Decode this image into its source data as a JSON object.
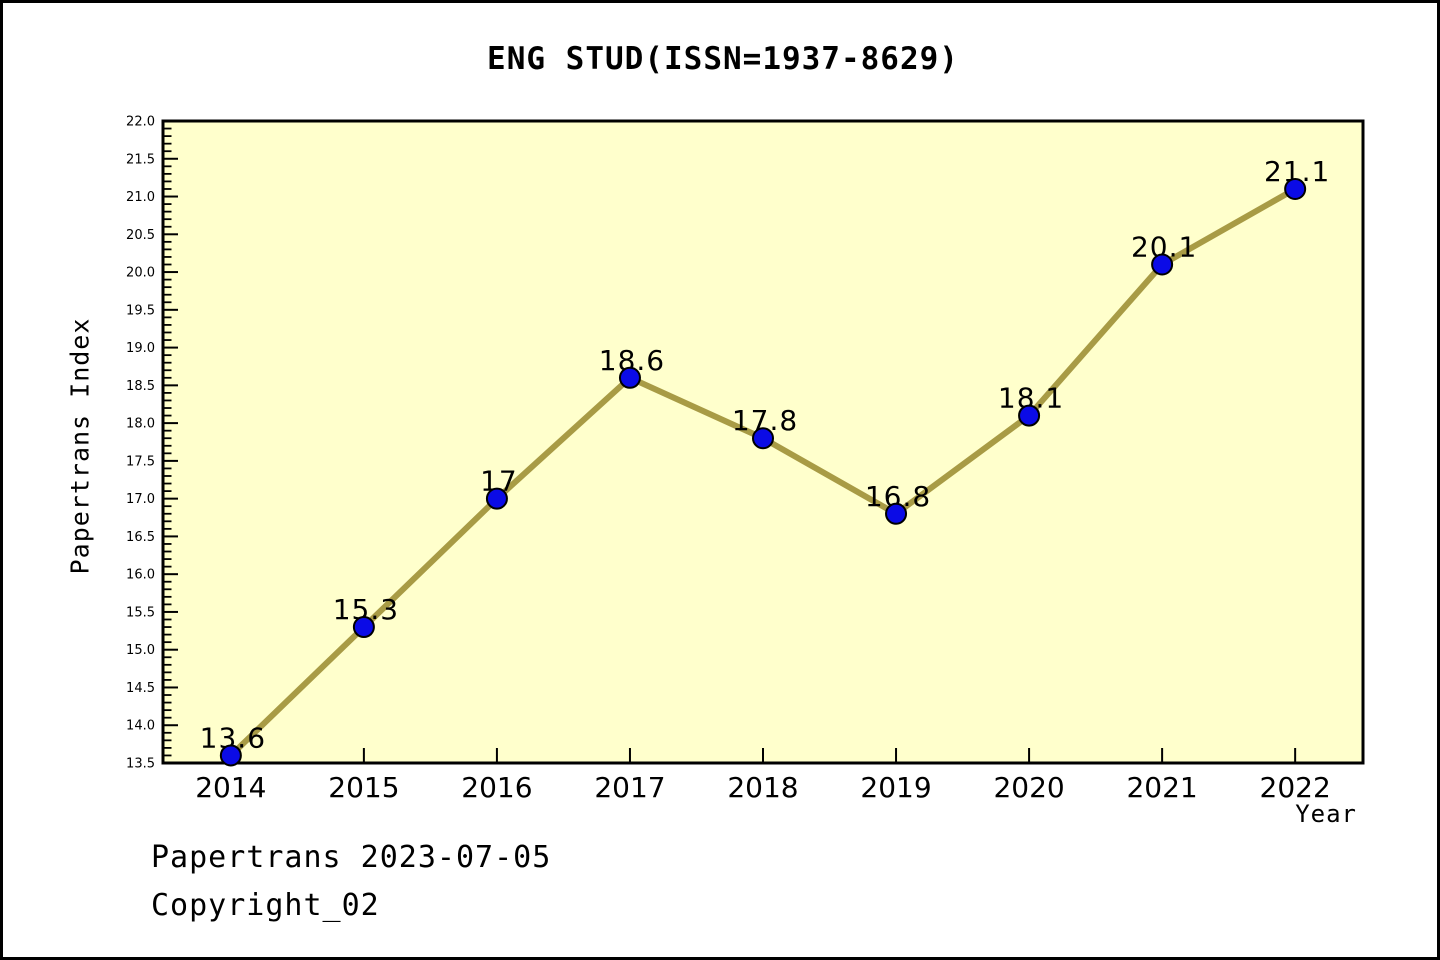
{
  "header": {
    "title": "ENG STUD(ISSN=1937-8629)"
  },
  "footer": {
    "line1": "Papertrans 2023-07-05",
    "line2": "Copyright_02"
  },
  "chart_data": {
    "type": "line",
    "title": "ENG STUD(ISSN=1937-8629)",
    "xlabel": "Year",
    "ylabel": "Papertrans Index",
    "categories": [
      "2014",
      "2015",
      "2016",
      "2017",
      "2018",
      "2019",
      "2020",
      "2021",
      "2022"
    ],
    "values": [
      13.6,
      15.3,
      17,
      18.6,
      17.8,
      16.8,
      18.1,
      20.1,
      21.1
    ],
    "point_labels": [
      "13.6",
      "15.3",
      "17",
      "18.6",
      "17.8",
      "16.8",
      "18.1",
      "20.1",
      "21.1"
    ],
    "series_name": "Papertrans Index",
    "ylim": [
      13.5,
      22.0
    ],
    "xlim": [
      2013.49,
      2022.51
    ],
    "y_tick_labels": [
      "13.5",
      "14.0",
      "14.5",
      "15.0",
      "15.5",
      "16.0",
      "16.5",
      "17.0",
      "17.5",
      "18.0",
      "18.5",
      "19.0",
      "19.5",
      "20.0",
      "20.5",
      "21.0",
      "21.5",
      "22.0"
    ],
    "y_major_step": 0.5,
    "y_minor_step": 0.1,
    "grid": false,
    "legend": "none",
    "tick_direction": "in",
    "colors": {
      "line": "#A89B45",
      "marker_fill": "#0B0BE6",
      "marker_edge": "#000000",
      "plot_bg": "#FFFFCC",
      "page_bg": "#FFFFFF",
      "axis": "#000000",
      "text": "#000000"
    }
  }
}
